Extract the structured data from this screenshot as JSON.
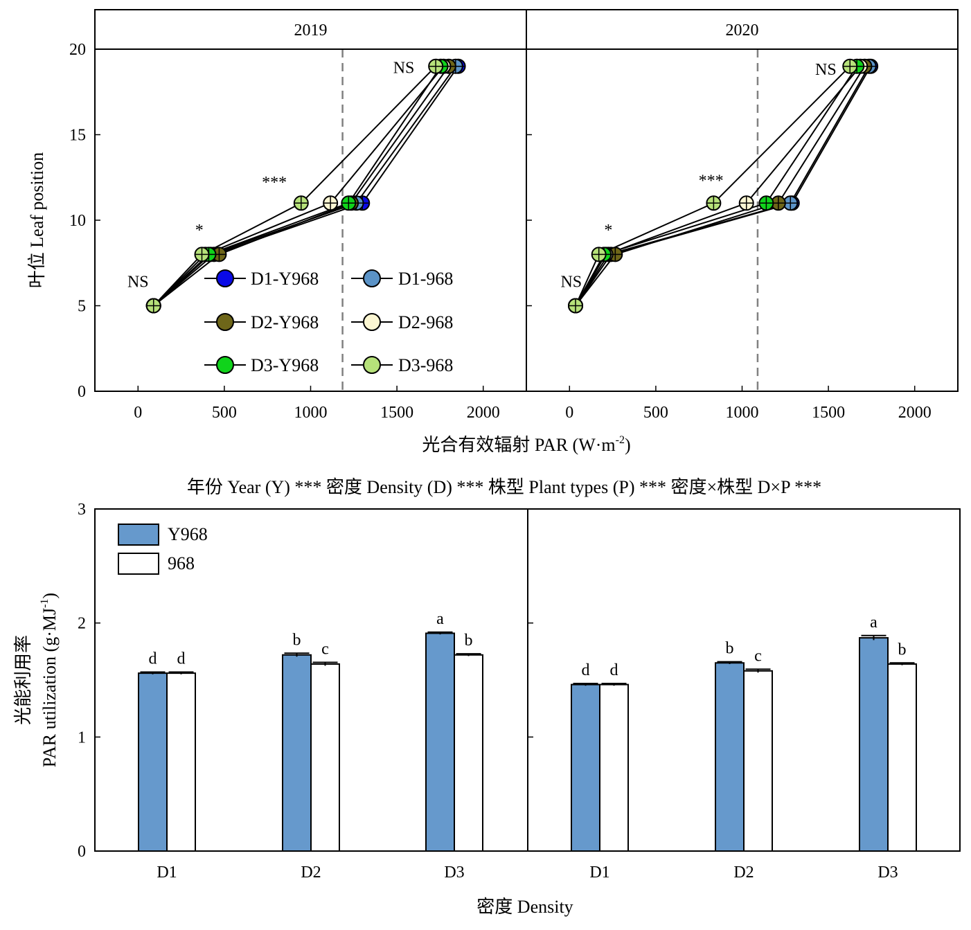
{
  "chart_data": [
    {
      "type": "line",
      "panels": [
        "2019",
        "2020"
      ],
      "xlabel": "光合有效辐射 PAR (W·m",
      "xlabel_sup": "-2",
      "xlabel_end": ")",
      "ylabel": "叶位 Leaf position",
      "xlim": [
        -250,
        2250
      ],
      "ylim": [
        0,
        20
      ],
      "xticks": [
        "0",
        "500",
        "1000",
        "1500",
        "2000"
      ],
      "yticks": [
        "0",
        "5",
        "10",
        "15",
        "20"
      ],
      "legend_position": "center-left inside 2019 panel",
      "colors": {
        "D1-Y968": "#0a0ae6",
        "D1-968": "#5b93c7",
        "D2-Y968": "#6e6619",
        "D2-968": "#fbf6d2",
        "D3-Y968": "#10d31b",
        "D3-968": "#b6e17a"
      },
      "legend": [
        "D1-Y968",
        "D1-968",
        "D2-Y968",
        "D2-968",
        "D3-Y968",
        "D3-968"
      ],
      "vline_x": {
        "2019": 1185,
        "2020": 1090
      },
      "series": [
        {
          "name": "D1-Y968",
          "panel": "2019",
          "x": [
            90,
            440,
            1300,
            1855
          ],
          "y": [
            5,
            8,
            11,
            19
          ]
        },
        {
          "name": "D1-968",
          "panel": "2019",
          "x": [
            90,
            420,
            1265,
            1840
          ],
          "y": [
            5,
            8,
            11,
            19
          ]
        },
        {
          "name": "D2-Y968",
          "panel": "2019",
          "x": [
            90,
            470,
            1235,
            1800
          ],
          "y": [
            5,
            8,
            11,
            19
          ]
        },
        {
          "name": "D2-968",
          "panel": "2019",
          "x": [
            90,
            390,
            1115,
            1770
          ],
          "y": [
            5,
            8,
            11,
            19
          ]
        },
        {
          "name": "D3-Y968",
          "panel": "2019",
          "x": [
            90,
            410,
            1220,
            1755
          ],
          "y": [
            5,
            8,
            11,
            19
          ]
        },
        {
          "name": "D3-968",
          "panel": "2019",
          "x": [
            90,
            370,
            945,
            1725
          ],
          "y": [
            5,
            8,
            11,
            19
          ]
        },
        {
          "name": "D1-Y968",
          "panel": "2020",
          "x": [
            35,
            240,
            1290,
            1745
          ],
          "y": [
            5,
            8,
            11,
            19
          ]
        },
        {
          "name": "D1-968",
          "panel": "2020",
          "x": [
            35,
            225,
            1280,
            1735
          ],
          "y": [
            5,
            8,
            11,
            19
          ]
        },
        {
          "name": "D2-Y968",
          "panel": "2020",
          "x": [
            35,
            265,
            1210,
            1710
          ],
          "y": [
            5,
            8,
            11,
            19
          ]
        },
        {
          "name": "D2-968",
          "panel": "2020",
          "x": [
            35,
            210,
            1025,
            1685
          ],
          "y": [
            5,
            8,
            11,
            19
          ]
        },
        {
          "name": "D3-Y968",
          "panel": "2020",
          "x": [
            35,
            200,
            1140,
            1665
          ],
          "y": [
            5,
            8,
            11,
            19
          ]
        },
        {
          "name": "D3-968",
          "panel": "2020",
          "x": [
            35,
            170,
            835,
            1625
          ],
          "y": [
            5,
            8,
            11,
            19
          ]
        }
      ],
      "annotations": [
        {
          "panel": "2019",
          "text": "NS",
          "x": 0,
          "y": 6.1
        },
        {
          "panel": "2019",
          "text": "*",
          "x": 355,
          "y": 9.1
        },
        {
          "panel": "2019",
          "text": "***",
          "x": 790,
          "y": 11.9
        },
        {
          "panel": "2019",
          "text": "NS",
          "x": 1540,
          "y": 18.6
        },
        {
          "panel": "2020",
          "text": "NS",
          "x": 10,
          "y": 6.1
        },
        {
          "panel": "2020",
          "text": "*",
          "x": 225,
          "y": 9.1
        },
        {
          "panel": "2020",
          "text": "***",
          "x": 820,
          "y": 12.0
        },
        {
          "panel": "2020",
          "text": "NS",
          "x": 1485,
          "y": 18.5
        }
      ]
    },
    {
      "type": "bar",
      "header": "年份 Year (Y) ***  密度 Density (D) ***  株型 Plant types  (P) ***  密度×株型 D×P ***",
      "panels": [
        "2019",
        "2020"
      ],
      "categories": [
        "D1",
        "D2",
        "D3"
      ],
      "xlabel": "密度 Density",
      "ylabel_line1": "光能利用率",
      "ylabel_line2": "PAR utilization (g·MJ",
      "ylabel_sup": "-1",
      "ylabel_end": ")",
      "ylim": [
        0,
        3
      ],
      "yticks": [
        "0",
        "1",
        "2",
        "3"
      ],
      "legend_position": "top-left",
      "colors": {
        "Y968": "#6699cc",
        "968": "#ffffff"
      },
      "series": [
        {
          "name": "Y968",
          "panel": "2019",
          "values": [
            1.56,
            1.72,
            1.91
          ],
          "errors": [
            0.01,
            0.015,
            0.01
          ],
          "letters": [
            "d",
            "b",
            "a"
          ]
        },
        {
          "name": "968",
          "panel": "2019",
          "values": [
            1.56,
            1.64,
            1.72
          ],
          "errors": [
            0.01,
            0.015,
            0.01
          ],
          "letters": [
            "d",
            "c",
            "b"
          ]
        },
        {
          "name": "Y968",
          "panel": "2020",
          "values": [
            1.46,
            1.65,
            1.87
          ],
          "errors": [
            0.01,
            0.01,
            0.02
          ],
          "letters": [
            "d",
            "b",
            "a"
          ]
        },
        {
          "name": "968",
          "panel": "2020",
          "values": [
            1.46,
            1.58,
            1.64
          ],
          "errors": [
            0.01,
            0.015,
            0.01
          ],
          "letters": [
            "d",
            "c",
            "b"
          ]
        }
      ]
    }
  ]
}
